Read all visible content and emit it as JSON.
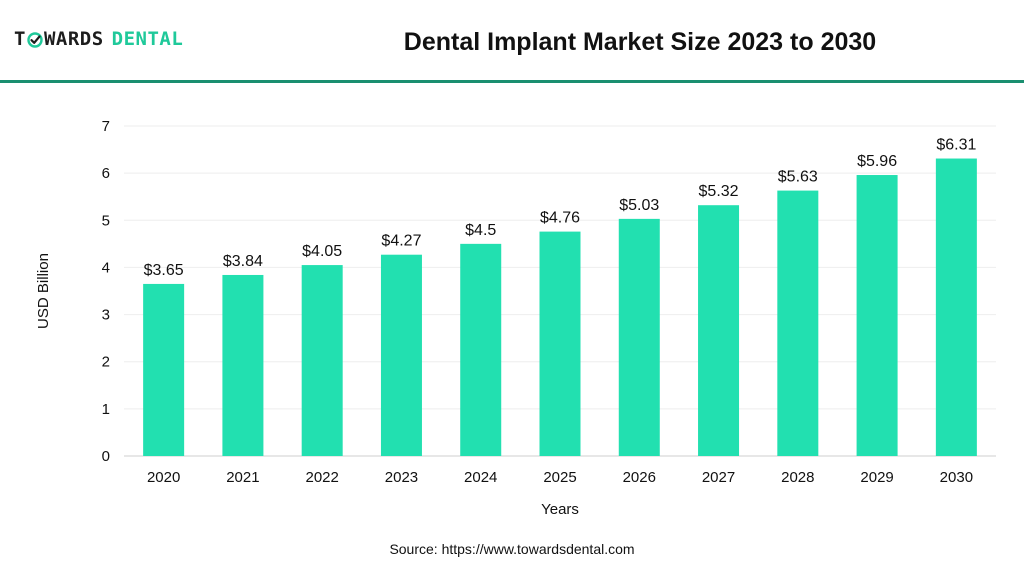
{
  "header": {
    "logo_word1": "TOWARDS",
    "logo_word2": "DENTAL",
    "title": "Dental Implant Market Size 2023 to 2030"
  },
  "colors": {
    "bar": "#22e0b0",
    "accent": "#1fc99a",
    "divider": "#1a8f70",
    "grid": "#eeeeee"
  },
  "footer": {
    "source": "Source: https://www.towardsdental.com"
  },
  "chart_data": {
    "type": "bar",
    "title": "Dental Implant Market Size 2023 to 2030",
    "xlabel": "Years",
    "ylabel": "USD Billion",
    "categories": [
      "2020",
      "2021",
      "2022",
      "2023",
      "2024",
      "2025",
      "2026",
      "2027",
      "2028",
      "2029",
      "2030"
    ],
    "values": [
      3.65,
      3.84,
      4.05,
      4.27,
      4.5,
      4.76,
      5.03,
      5.32,
      5.63,
      5.96,
      6.31
    ],
    "value_labels": [
      "$3.65",
      "$3.84",
      "$4.05",
      "$4.27",
      "$4.5",
      "$4.76",
      "$5.03",
      "$5.32",
      "$5.63",
      "$5.96",
      "$6.31"
    ],
    "yticks": [
      "0",
      "1",
      "2",
      "3",
      "4",
      "5",
      "6",
      "7"
    ],
    "ylim": [
      0,
      7
    ],
    "grid": true,
    "legend": "none"
  }
}
